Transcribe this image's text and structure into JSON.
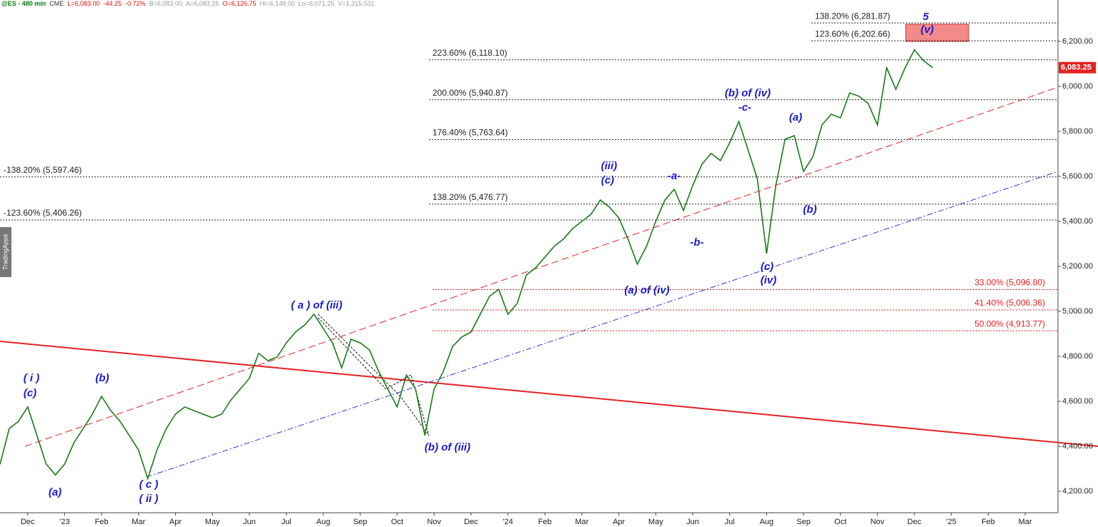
{
  "header": {
    "items": [
      "@ES - 480 min",
      "CME",
      "L=6,083.00",
      "-44.25",
      "-0.72%",
      "B=6,083.00",
      "A=6,083.25",
      "O=6,126.75",
      "Hi=6,148.00",
      "Lo=6,071.25",
      "V=1,315,531"
    ]
  },
  "watermark": "TradingApps",
  "chart_data": {
    "type": "line",
    "categories": [
      null,
      null,
      null,
      "Dec",
      null,
      null,
      null,
      "'23",
      null,
      null,
      null,
      "Feb",
      null,
      null,
      null,
      "Mar",
      null,
      null,
      null,
      "Apr",
      null,
      null,
      null,
      "May",
      null,
      null,
      null,
      "Jun",
      null,
      null,
      null,
      "Jul",
      null,
      null,
      null,
      "Aug",
      null,
      null,
      null,
      "Sep",
      null,
      null,
      null,
      "Oct",
      null,
      null,
      null,
      "Nov",
      null,
      null,
      null,
      "Dec",
      null,
      null,
      null,
      "'24",
      null,
      null,
      null,
      "Feb",
      null,
      null,
      null,
      "Mar",
      null,
      null,
      null,
      "Apr",
      null,
      null,
      null,
      "May",
      null,
      null,
      null,
      "Jun",
      null,
      null,
      null,
      "Jul",
      null,
      null,
      null,
      "Aug",
      null,
      null,
      null,
      "Sep",
      null,
      null,
      null,
      "Oct",
      null,
      null,
      null,
      "Nov",
      null,
      null,
      null,
      "Dec",
      null,
      null,
      null,
      "'25",
      null,
      null,
      null,
      "Feb",
      null,
      null,
      null,
      "Mar",
      null,
      null,
      null
    ],
    "series": [
      {
        "color": "#1a7a1a",
        "values": [
          4320,
          4479,
          4511,
          4575,
          4448,
          4321,
          4273,
          4321,
          4416,
          4479,
          4543,
          4622,
          4559,
          4511,
          4448,
          4384,
          4257,
          4384,
          4479,
          4543,
          4575,
          4559,
          4543,
          4527,
          4543,
          4606,
          4654,
          4702,
          4813,
          4781,
          4797,
          4860,
          4908,
          4940,
          4987,
          4924,
          4860,
          4749,
          4876,
          4860,
          4829,
          4733,
          4654,
          4575,
          4717,
          4654,
          4448,
          4654,
          4733,
          4844,
          4886,
          4908,
          4987,
          5067,
          5098,
          4987,
          5035,
          5162,
          5194,
          5241,
          5289,
          5321,
          5368,
          5400,
          5432,
          5495,
          5463,
          5416,
          5321,
          5210,
          5289,
          5400,
          5495,
          5543,
          5448,
          5559,
          5654,
          5702,
          5670,
          5749,
          5844,
          5717,
          5590,
          5257,
          5559,
          5765,
          5781,
          5622,
          5686,
          5829,
          5876,
          5860,
          5971,
          5956,
          5924,
          5829,
          6083,
          5987,
          6083,
          6162,
          6114,
          6083.25,
          null,
          null,
          null,
          null,
          null,
          null,
          null,
          null,
          null,
          null,
          null,
          null,
          null
        ]
      }
    ],
    "ylim": [
      4105,
      6384
    ],
    "yticks": [
      {
        "value": 4200,
        "label": "4,200.00"
      },
      {
        "value": 4400,
        "label": "4,400.00"
      },
      {
        "value": 4600,
        "label": "4,600.00"
      },
      {
        "value": 4800,
        "label": "4,800.00"
      },
      {
        "value": 5000,
        "label": "5,000.00"
      },
      {
        "value": 5200,
        "label": "5,200.00"
      },
      {
        "value": 5400,
        "label": "5,400.00"
      },
      {
        "value": 5600,
        "label": "5,600.00"
      },
      {
        "value": 5800,
        "label": "5,800.00"
      },
      {
        "value": 6000,
        "label": "6,000.00"
      },
      {
        "value": 6200,
        "label": "6,200.00"
      }
    ],
    "last_price": {
      "value": 6083.25,
      "label": "6,083.25",
      "color": "#e52222"
    },
    "levels": [
      {
        "label": "138.20% (6,281.87)",
        "value": 6281.87,
        "color": "#222"
      },
      {
        "label": "123.60% (6,202.66)",
        "value": 6202.66,
        "color": "#222"
      },
      {
        "label": "223.60% (6,118.10)",
        "value": 6118.1,
        "color": "#222"
      },
      {
        "label": "200.00% (5,940.87)",
        "value": 5940.87,
        "color": "#222"
      },
      {
        "label": "176.40% (5,763.64)",
        "value": 5763.64,
        "color": "#222"
      },
      {
        "label": "-138.20% (5,597.46)",
        "value": 5597.46,
        "color": "#222"
      },
      {
        "label": "138.20% (5,476.77)",
        "value": 5476.77,
        "color": "#222"
      },
      {
        "label": "-123.60% (5,406.26)",
        "value": 5406.26,
        "color": "#222"
      },
      {
        "label": "33.00% (5,096.80)",
        "value": 5096.8,
        "color": "#e52222"
      },
      {
        "label": "41.40% (5,006.36)",
        "value": 5006.36,
        "color": "#e52222"
      },
      {
        "label": "50.00% (4,913.77)",
        "value": 4913.77,
        "color": "#e52222"
      }
    ],
    "annotations": [
      "5",
      "(v)",
      "(iii)",
      "(c)",
      "-a-",
      "-b-",
      "-c-",
      "(b) of (iv)",
      "(a)",
      "(b)",
      "(c)",
      "(iv)",
      "(a) of (iv)",
      "( a ) of (iii)",
      "(b) of (iii)",
      "( i )",
      "(c)",
      "(b)",
      "(a)",
      "( c )",
      "( ii )"
    ]
  }
}
